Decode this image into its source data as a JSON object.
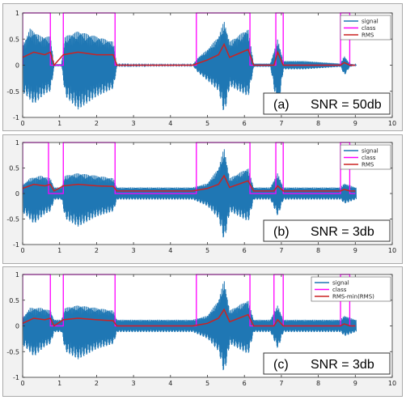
{
  "chart_data": [
    {
      "type": "line",
      "annotation": {
        "label": "(a)",
        "text": "SNR = 50db"
      },
      "xlim": [
        0,
        10
      ],
      "ylim": [
        -1,
        1
      ],
      "xticks": [
        "0",
        "1",
        "2",
        "3",
        "4",
        "5",
        "6",
        "7",
        "8",
        "9",
        "10"
      ],
      "yticks": [
        "-1",
        "-0.5",
        "0",
        "0.5",
        "1"
      ],
      "grid": false,
      "legend_position": "top-right",
      "series": [
        {
          "name": "signal",
          "color": "#1f77b4",
          "envelope_upper": [
            [
              0.05,
              0.45
            ],
            [
              0.2,
              0.7
            ],
            [
              0.5,
              0.55
            ],
            [
              0.75,
              0.55
            ],
            [
              0.85,
              0.02
            ],
            [
              1.05,
              0.02
            ],
            [
              1.15,
              0.55
            ],
            [
              1.5,
              0.65
            ],
            [
              2.0,
              0.55
            ],
            [
              2.45,
              0.45
            ],
            [
              2.55,
              0.01
            ],
            [
              4.6,
              0.01
            ],
            [
              4.75,
              0.15
            ],
            [
              5.0,
              0.3
            ],
            [
              5.3,
              0.55
            ],
            [
              5.45,
              0.85
            ],
            [
              5.6,
              0.45
            ],
            [
              6.1,
              0.7
            ],
            [
              6.25,
              0.03
            ],
            [
              6.7,
              0.03
            ],
            [
              6.9,
              0.5
            ],
            [
              7.05,
              0.08
            ],
            [
              7.6,
              0.08
            ],
            [
              8.6,
              0.03
            ],
            [
              8.7,
              0.18
            ],
            [
              8.85,
              0.03
            ],
            [
              9.0,
              0.01
            ]
          ],
          "envelope_lower": [
            [
              0.05,
              -0.55
            ],
            [
              0.3,
              -0.75
            ],
            [
              0.6,
              -0.55
            ],
            [
              0.75,
              -0.5
            ],
            [
              0.85,
              -0.02
            ],
            [
              1.05,
              -0.02
            ],
            [
              1.15,
              -0.6
            ],
            [
              1.5,
              -0.85
            ],
            [
              2.0,
              -0.6
            ],
            [
              2.45,
              -0.45
            ],
            [
              2.55,
              -0.01
            ],
            [
              4.6,
              -0.01
            ],
            [
              4.75,
              -0.15
            ],
            [
              5.0,
              -0.3
            ],
            [
              5.3,
              -0.5
            ],
            [
              5.45,
              -0.95
            ],
            [
              5.6,
              -0.4
            ],
            [
              6.1,
              -0.6
            ],
            [
              6.25,
              -0.03
            ],
            [
              6.7,
              -0.03
            ],
            [
              6.9,
              -0.9
            ],
            [
              7.05,
              -0.08
            ],
            [
              7.6,
              -0.08
            ],
            [
              8.6,
              -0.03
            ],
            [
              8.7,
              -0.2
            ],
            [
              8.85,
              -0.03
            ],
            [
              9.0,
              -0.01
            ]
          ]
        },
        {
          "name": "class",
          "color": "#ff00ff",
          "segments": [
            [
              0.0,
              0.75
            ],
            [
              1.1,
              2.5
            ],
            [
              4.7,
              6.15
            ],
            [
              6.85,
              7.05
            ],
            [
              8.6,
              8.85
            ]
          ],
          "high": 1,
          "low": 0
        },
        {
          "name": "RMS",
          "color": "#cc2222",
          "x": [
            0,
            0.3,
            0.6,
            0.75,
            0.85,
            1.1,
            1.5,
            2.0,
            2.45,
            2.55,
            4.6,
            5.0,
            5.3,
            5.45,
            5.6,
            6.1,
            6.25,
            6.8,
            6.9,
            7.05,
            8.6,
            8.7,
            8.85,
            9.0
          ],
          "y": [
            0.15,
            0.25,
            0.2,
            0.25,
            0.0,
            0.2,
            0.25,
            0.2,
            0.2,
            0.0,
            0.0,
            0.1,
            0.2,
            0.4,
            0.15,
            0.3,
            0.0,
            0.0,
            0.25,
            0.0,
            0.0,
            0.05,
            0.0,
            0.0
          ]
        }
      ]
    },
    {
      "type": "line",
      "annotation": {
        "label": "(b)",
        "text": "SNR = 3db"
      },
      "xlim": [
        0,
        10
      ],
      "ylim": [
        -1,
        1
      ],
      "xticks": [
        "0",
        "1",
        "2",
        "3",
        "4",
        "5",
        "6",
        "7",
        "8",
        "9",
        "10"
      ],
      "yticks": [
        "-1",
        "-0.5",
        "0",
        "0.5",
        "1"
      ],
      "grid": false,
      "legend_position": "top-right",
      "series": [
        {
          "name": "signal",
          "color": "#1f77b4",
          "envelope_upper": [
            [
              0.05,
              0.2
            ],
            [
              0.2,
              0.3
            ],
            [
              0.5,
              0.35
            ],
            [
              0.75,
              0.3
            ],
            [
              0.85,
              0.12
            ],
            [
              1.05,
              0.12
            ],
            [
              1.15,
              0.35
            ],
            [
              1.5,
              0.4
            ],
            [
              2.0,
              0.35
            ],
            [
              2.45,
              0.3
            ],
            [
              2.55,
              0.12
            ],
            [
              4.6,
              0.12
            ],
            [
              5.0,
              0.2
            ],
            [
              5.3,
              0.5
            ],
            [
              5.45,
              0.9
            ],
            [
              5.6,
              0.3
            ],
            [
              6.1,
              0.5
            ],
            [
              6.25,
              0.12
            ],
            [
              6.7,
              0.12
            ],
            [
              6.9,
              0.4
            ],
            [
              7.05,
              0.12
            ],
            [
              8.6,
              0.12
            ],
            [
              8.7,
              0.2
            ],
            [
              9.0,
              0.12
            ]
          ],
          "envelope_lower": [
            [
              0.05,
              -0.4
            ],
            [
              0.3,
              -0.6
            ],
            [
              0.6,
              -0.4
            ],
            [
              0.75,
              -0.35
            ],
            [
              0.85,
              -0.12
            ],
            [
              1.05,
              -0.12
            ],
            [
              1.15,
              -0.5
            ],
            [
              1.5,
              -0.65
            ],
            [
              2.0,
              -0.45
            ],
            [
              2.45,
              -0.35
            ],
            [
              2.55,
              -0.12
            ],
            [
              4.6,
              -0.12
            ],
            [
              5.0,
              -0.25
            ],
            [
              5.3,
              -0.5
            ],
            [
              5.45,
              -0.95
            ],
            [
              5.6,
              -0.35
            ],
            [
              6.1,
              -0.55
            ],
            [
              6.25,
              -0.12
            ],
            [
              6.7,
              -0.12
            ],
            [
              6.9,
              -0.45
            ],
            [
              7.05,
              -0.12
            ],
            [
              8.6,
              -0.12
            ],
            [
              8.7,
              -0.2
            ],
            [
              9.0,
              -0.12
            ]
          ]
        },
        {
          "name": "class",
          "color": "#ff00ff",
          "segments": [
            [
              0.0,
              0.7
            ],
            [
              1.1,
              2.5
            ],
            [
              4.7,
              6.15
            ],
            [
              6.85,
              7.05
            ],
            [
              8.6,
              8.85
            ]
          ],
          "high": 1,
          "low": 0
        },
        {
          "name": "RMS",
          "color": "#cc2222",
          "x": [
            0,
            0.3,
            0.6,
            0.75,
            0.85,
            1.1,
            1.5,
            2.0,
            2.45,
            2.55,
            4.6,
            5.0,
            5.3,
            5.45,
            5.6,
            6.1,
            6.25,
            6.8,
            6.9,
            7.05,
            8.6,
            8.7,
            8.85,
            9.0
          ],
          "y": [
            0.1,
            0.18,
            0.15,
            0.18,
            0.05,
            0.15,
            0.18,
            0.15,
            0.14,
            0.05,
            0.05,
            0.1,
            0.18,
            0.35,
            0.12,
            0.25,
            0.05,
            0.05,
            0.15,
            0.05,
            0.05,
            0.08,
            0.05,
            0.05
          ]
        }
      ]
    },
    {
      "type": "line",
      "annotation": {
        "label": "(c)",
        "text": "SNR = 3db"
      },
      "xlim": [
        0,
        10
      ],
      "ylim": [
        -1,
        1
      ],
      "xticks": [
        "0",
        "1",
        "2",
        "3",
        "4",
        "5",
        "6",
        "7",
        "8",
        "9",
        "10"
      ],
      "yticks": [
        "-1",
        "-0.5",
        "0",
        "0.5",
        "1"
      ],
      "grid": false,
      "legend_position": "top-right",
      "series": [
        {
          "name": "signal",
          "color": "#1f77b4",
          "envelope_upper": [
            [
              0.05,
              0.2
            ],
            [
              0.2,
              0.35
            ],
            [
              0.5,
              0.35
            ],
            [
              0.75,
              0.3
            ],
            [
              0.85,
              0.12
            ],
            [
              1.05,
              0.12
            ],
            [
              1.15,
              0.35
            ],
            [
              1.5,
              0.4
            ],
            [
              2.0,
              0.35
            ],
            [
              2.45,
              0.3
            ],
            [
              2.55,
              0.12
            ],
            [
              4.6,
              0.12
            ],
            [
              5.0,
              0.2
            ],
            [
              5.3,
              0.5
            ],
            [
              5.45,
              0.9
            ],
            [
              5.6,
              0.3
            ],
            [
              6.1,
              0.5
            ],
            [
              6.25,
              0.12
            ],
            [
              6.7,
              0.12
            ],
            [
              6.9,
              0.4
            ],
            [
              7.05,
              0.12
            ],
            [
              8.6,
              0.12
            ],
            [
              8.7,
              0.2
            ],
            [
              9.0,
              0.12
            ]
          ],
          "envelope_lower": [
            [
              0.05,
              -0.4
            ],
            [
              0.3,
              -0.6
            ],
            [
              0.6,
              -0.4
            ],
            [
              0.75,
              -0.35
            ],
            [
              0.85,
              -0.12
            ],
            [
              1.05,
              -0.12
            ],
            [
              1.15,
              -0.5
            ],
            [
              1.5,
              -0.65
            ],
            [
              2.0,
              -0.45
            ],
            [
              2.45,
              -0.35
            ],
            [
              2.55,
              -0.12
            ],
            [
              4.6,
              -0.12
            ],
            [
              5.0,
              -0.25
            ],
            [
              5.3,
              -0.5
            ],
            [
              5.45,
              -0.95
            ],
            [
              5.6,
              -0.35
            ],
            [
              6.1,
              -0.55
            ],
            [
              6.25,
              -0.12
            ],
            [
              6.7,
              -0.12
            ],
            [
              6.9,
              -0.45
            ],
            [
              7.05,
              -0.12
            ],
            [
              8.6,
              -0.12
            ],
            [
              8.7,
              -0.2
            ],
            [
              9.0,
              -0.12
            ]
          ]
        },
        {
          "name": "class",
          "color": "#ff00ff",
          "segments": [
            [
              0.0,
              0.75
            ],
            [
              1.1,
              2.5
            ],
            [
              4.7,
              6.15
            ],
            [
              6.8,
              7.05
            ],
            [
              8.6,
              8.85
            ]
          ],
          "high": 1,
          "low": 0
        },
        {
          "name": "RMS-min(RMS)",
          "color": "#cc2222",
          "x": [
            0,
            0.3,
            0.6,
            0.75,
            0.85,
            1.1,
            1.5,
            2.0,
            2.45,
            2.55,
            4.6,
            5.0,
            5.3,
            5.45,
            5.6,
            6.1,
            6.25,
            6.8,
            6.9,
            7.05,
            8.6,
            8.7,
            8.85,
            9.0
          ],
          "y": [
            0.05,
            0.15,
            0.12,
            0.15,
            0.0,
            0.12,
            0.15,
            0.12,
            0.1,
            0.0,
            0.0,
            0.05,
            0.15,
            0.32,
            0.08,
            0.22,
            0.0,
            0.0,
            0.12,
            0.0,
            0.0,
            0.04,
            0.0,
            0.0
          ]
        }
      ]
    }
  ]
}
